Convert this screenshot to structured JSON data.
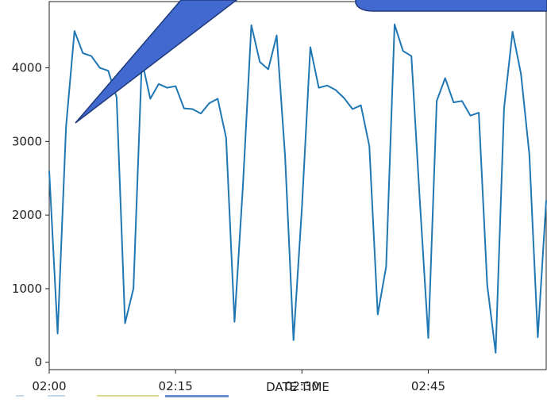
{
  "chart_data": {
    "type": "line",
    "title": "",
    "xlabel": "DATE TIME",
    "ylabel": "",
    "x_minutes_range": [
      0,
      59
    ],
    "ylim": [
      -100,
      4900
    ],
    "grid": false,
    "line_color": "#1f77b4",
    "xticks": [
      {
        "label": "02:00",
        "minute": 0
      },
      {
        "label": "02:15",
        "minute": 15
      },
      {
        "label": "02:30",
        "minute": 30
      },
      {
        "label": "02:45",
        "minute": 45
      }
    ],
    "yticks": [
      {
        "label": "0",
        "value": 0
      },
      {
        "label": "1000",
        "value": 1000
      },
      {
        "label": "2000",
        "value": 2000
      },
      {
        "label": "3000",
        "value": 3000
      },
      {
        "label": "4000",
        "value": 4000
      }
    ],
    "series": [
      {
        "x_labels": [
          "02:00",
          "02:01",
          "02:02",
          "02:03",
          "02:04",
          "02:05",
          "02:06",
          "02:07",
          "02:08",
          "02:09",
          "02:10",
          "02:11",
          "02:12",
          "02:13",
          "02:14",
          "02:15",
          "02:16",
          "02:17",
          "02:18",
          "02:19",
          "02:20",
          "02:21",
          "02:22",
          "02:23",
          "02:24",
          "02:25",
          "02:26",
          "02:27",
          "02:28",
          "02:29",
          "02:30",
          "02:31",
          "02:32",
          "02:33",
          "02:34",
          "02:35",
          "02:36",
          "02:37",
          "02:38",
          "02:39",
          "02:40",
          "02:41",
          "02:42",
          "02:43",
          "02:44",
          "02:45",
          "02:46",
          "02:47",
          "02:48",
          "02:49",
          "02:50",
          "02:51",
          "02:52",
          "02:53",
          "02:54",
          "02:55",
          "02:56",
          "02:57",
          "02:58",
          "02:59"
        ],
        "values": [
          2600,
          390,
          3200,
          4500,
          4200,
          4160,
          4000,
          3960,
          3600,
          530,
          1000,
          4100,
          3580,
          3780,
          3730,
          3750,
          3450,
          3440,
          3380,
          3520,
          3580,
          3050,
          550,
          2400,
          4580,
          4080,
          3980,
          4440,
          2800,
          300,
          2100,
          4280,
          3730,
          3760,
          3700,
          3590,
          3440,
          3490,
          2940,
          650,
          1300,
          4590,
          4230,
          4160,
          2200,
          330,
          3550,
          3860,
          3530,
          3550,
          3350,
          3390,
          1050,
          130,
          3450,
          4490,
          3920,
          2820,
          340,
          2200
        ]
      }
    ]
  },
  "callout": {
    "fill": "#4169cf",
    "stroke": "#1f3a7a"
  }
}
